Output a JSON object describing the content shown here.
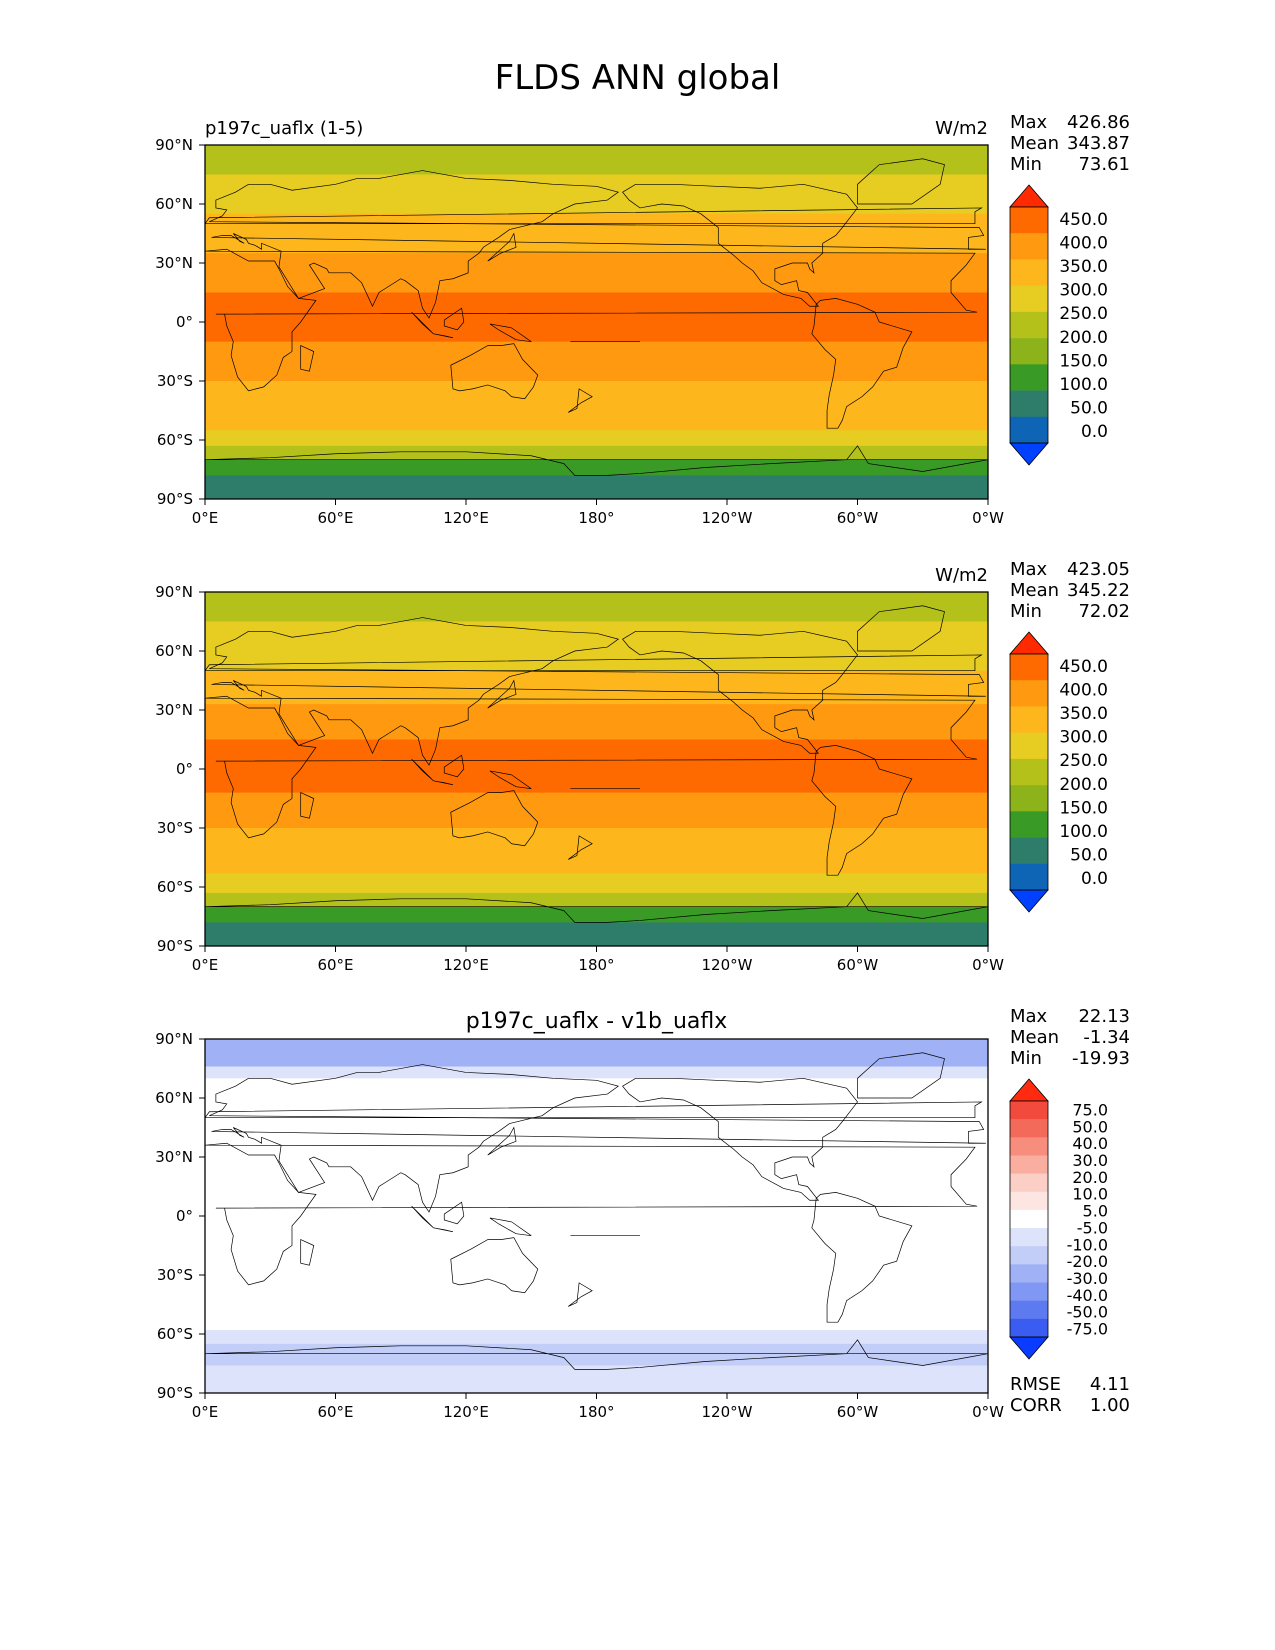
{
  "title": "FLDS ANN global",
  "chart_data": [
    {
      "type": "heatmap",
      "title_left": "p197c_uaflx (1-5)",
      "title_center": "",
      "units": "W/m2",
      "stats": [
        {
          "label": "Max",
          "value": "426.86"
        },
        {
          "label": "Mean",
          "value": "343.87"
        },
        {
          "label": "Min",
          "value": "73.61"
        }
      ],
      "xticks": [
        "0°E",
        "60°E",
        "120°E",
        "180°",
        "120°W",
        "60°W",
        "0°W"
      ],
      "yticks": [
        "90°N",
        "60°N",
        "30°N",
        "0°",
        "30°S",
        "60°S",
        "90°S"
      ],
      "colorbar": {
        "labels": [
          "450.0",
          "400.0",
          "350.0",
          "300.0",
          "250.0",
          "200.0",
          "150.0",
          "100.0",
          "50.0",
          "0.0"
        ],
        "colors": [
          "#ff2a00",
          "#ff6a00",
          "#ff9a10",
          "#fdb71c",
          "#e7cc22",
          "#b5c11b",
          "#8cb41a",
          "#3a9a26",
          "#2e7d6a",
          "#0f65b5",
          "#0040ff"
        ]
      },
      "bands": [
        {
          "lat": [
            90,
            75
          ],
          "level": 5
        },
        {
          "lat": [
            75,
            55
          ],
          "level": 4
        },
        {
          "lat": [
            55,
            35
          ],
          "level": 3
        },
        {
          "lat": [
            35,
            15
          ],
          "level": 2
        },
        {
          "lat": [
            15,
            -10
          ],
          "level": 1
        },
        {
          "lat": [
            -10,
            -30
          ],
          "level": 2
        },
        {
          "lat": [
            -30,
            -55
          ],
          "level": 3
        },
        {
          "lat": [
            -55,
            -63
          ],
          "level": 4
        },
        {
          "lat": [
            -63,
            -70
          ],
          "level": 5
        },
        {
          "lat": [
            -70,
            -78
          ],
          "level": 7
        },
        {
          "lat": [
            -78,
            -90
          ],
          "level": 8
        }
      ],
      "rmse": "",
      "corr": ""
    },
    {
      "type": "heatmap",
      "title_left": "",
      "title_center": "",
      "units": "W/m2",
      "stats": [
        {
          "label": "Max",
          "value": "423.05"
        },
        {
          "label": "Mean",
          "value": "345.22"
        },
        {
          "label": "Min",
          "value": "72.02"
        }
      ],
      "xticks": [
        "0°E",
        "60°E",
        "120°E",
        "180°",
        "120°W",
        "60°W",
        "0°W"
      ],
      "yticks": [
        "90°N",
        "60°N",
        "30°N",
        "0°",
        "30°S",
        "60°S",
        "90°S"
      ],
      "colorbar": {
        "labels": [
          "450.0",
          "400.0",
          "350.0",
          "300.0",
          "250.0",
          "200.0",
          "150.0",
          "100.0",
          "50.0",
          "0.0"
        ],
        "colors": [
          "#ff2a00",
          "#ff6a00",
          "#ff9a10",
          "#fdb71c",
          "#e7cc22",
          "#b5c11b",
          "#8cb41a",
          "#3a9a26",
          "#2e7d6a",
          "#0f65b5",
          "#0040ff"
        ]
      },
      "bands": [
        {
          "lat": [
            90,
            75
          ],
          "level": 5
        },
        {
          "lat": [
            75,
            50
          ],
          "level": 4
        },
        {
          "lat": [
            50,
            33
          ],
          "level": 3
        },
        {
          "lat": [
            33,
            15
          ],
          "level": 2
        },
        {
          "lat": [
            15,
            -12
          ],
          "level": 1
        },
        {
          "lat": [
            -12,
            -30
          ],
          "level": 2
        },
        {
          "lat": [
            -30,
            -53
          ],
          "level": 3
        },
        {
          "lat": [
            -53,
            -63
          ],
          "level": 4
        },
        {
          "lat": [
            -63,
            -70
          ],
          "level": 5
        },
        {
          "lat": [
            -70,
            -78
          ],
          "level": 7
        },
        {
          "lat": [
            -78,
            -90
          ],
          "level": 8
        }
      ],
      "rmse": "",
      "corr": ""
    },
    {
      "type": "heatmap",
      "title_left": "",
      "title_center": "p197c_uaflx - v1b_uaflx",
      "units": "",
      "stats": [
        {
          "label": "Max",
          "value": "22.13"
        },
        {
          "label": "Mean",
          "value": "-1.34"
        },
        {
          "label": "Min",
          "value": "-19.93"
        }
      ],
      "xticks": [
        "0°E",
        "60°E",
        "120°E",
        "180°",
        "120°W",
        "60°W",
        "0°W"
      ],
      "yticks": [
        "90°N",
        "60°N",
        "30°N",
        "0°",
        "30°S",
        "60°S",
        "90°S"
      ],
      "colorbar": {
        "labels": [
          "75.0",
          "50.0",
          "40.0",
          "30.0",
          "20.0",
          "10.0",
          "5.0",
          "-5.0",
          "-10.0",
          "-20.0",
          "-30.0",
          "-40.0",
          "-50.0",
          "-75.0"
        ],
        "colors": [
          "#ff2a10",
          "#f24a3c",
          "#f46a5a",
          "#f78d7c",
          "#f9ae9f",
          "#fbcfc6",
          "#fde6e1",
          "#ffffff",
          "#dde3fb",
          "#c2cdf8",
          "#a0b2f5",
          "#8097f3",
          "#5d7af1",
          "#3a5cf0",
          "#0a3cff"
        ]
      },
      "bands": [
        {
          "lat": [
            90,
            76
          ],
          "level": 10
        },
        {
          "lat": [
            76,
            70
          ],
          "level": 8
        },
        {
          "lat": [
            70,
            -58
          ],
          "level": 7
        },
        {
          "lat": [
            -58,
            -65
          ],
          "level": 8
        },
        {
          "lat": [
            -65,
            -76
          ],
          "level": 9
        },
        {
          "lat": [
            -76,
            -90
          ],
          "level": 8
        }
      ],
      "rmse": "4.11",
      "corr": "1.00",
      "rmse_label": "RMSE",
      "corr_label": "CORR"
    }
  ]
}
